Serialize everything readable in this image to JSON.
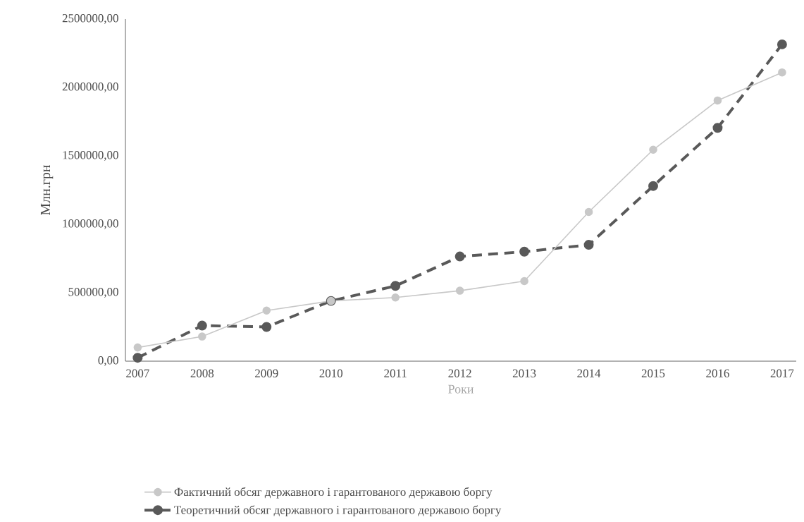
{
  "chart_data": {
    "type": "line",
    "xlabel": "Роки",
    "ylabel": "Млн.грн",
    "categories": [
      "2007",
      "2008",
      "2009",
      "2010",
      "2011",
      "2012",
      "2013",
      "2014",
      "2015",
      "2016",
      "2017"
    ],
    "series": [
      {
        "name": "Фактичний обсяг державного і гарантованого державою боргу",
        "color": "#c8c8c8",
        "line_style": "solid",
        "values": [
          100000,
          180000,
          370000,
          440000,
          465000,
          515000,
          585000,
          1090000,
          1545000,
          1905000,
          2110000
        ]
      },
      {
        "name": "Теоретичний обсяг державного і гарантованого державою боргу",
        "color": "#595959",
        "line_style": "dashed",
        "values": [
          25000,
          260000,
          250000,
          440000,
          550000,
          765000,
          800000,
          850000,
          1280000,
          1705000,
          2315000
        ]
      }
    ],
    "ylim": [
      0,
      2500000
    ],
    "yticks": [
      {
        "value": 0,
        "label": "0,00"
      },
      {
        "value": 500000,
        "label": "500000,00"
      },
      {
        "value": 1000000,
        "label": "1000000,00"
      },
      {
        "value": 1500000,
        "label": "1500000,00"
      },
      {
        "value": 2000000,
        "label": "2000000,00"
      },
      {
        "value": 2500000,
        "label": "2500000,00"
      }
    ],
    "marker": "circle",
    "legend": "bottom",
    "grid": false
  }
}
